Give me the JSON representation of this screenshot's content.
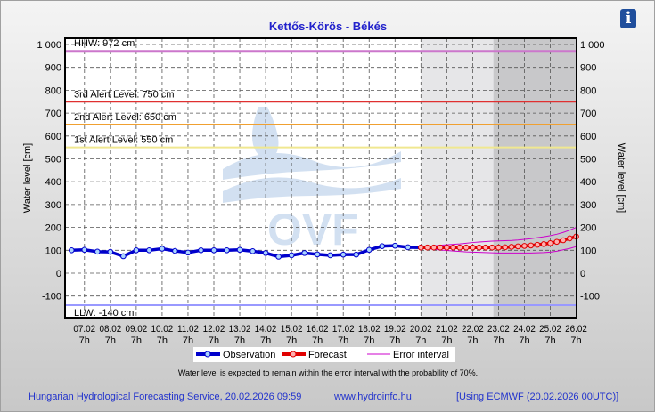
{
  "title": "Kettős-Körös - Békés",
  "info_icon": "info-icon",
  "chart_data": {
    "type": "line",
    "title": "Kettős-Körös - Békés",
    "ylabel": "Water level [cm]",
    "ylim": [
      -190,
      1090
    ],
    "yticks": [
      1000,
      900,
      800,
      700,
      600,
      500,
      400,
      300,
      200,
      100,
      0,
      -100
    ],
    "ytick_labels": [
      "1 000",
      "900",
      "800",
      "700",
      "600",
      "500",
      "400",
      "300",
      "200",
      "100",
      "0",
      "-100"
    ],
    "xtick_dates": [
      "07.02",
      "08.02",
      "09.02",
      "10.02",
      "11.02",
      "12.02",
      "13.02",
      "14.02",
      "15.02",
      "16.02",
      "17.02",
      "18.02",
      "19.02",
      "20.02",
      "21.02",
      "22.02",
      "23.02",
      "24.02",
      "25.02",
      "26.02"
    ],
    "xtick_hour": "7h",
    "reference_lines": [
      {
        "label": "HHW: 972 cm",
        "value": 972,
        "color": "#cc77cc"
      },
      {
        "label": "3rd Alert Level: 750 cm",
        "value": 750,
        "color": "#e03030"
      },
      {
        "label": "2nd Alert Level: 650 cm",
        "value": 650,
        "color": "#f0a030"
      },
      {
        "label": "1st Alert Level: 550 cm",
        "value": 550,
        "color": "#f0e890"
      },
      {
        "label": "LLW: -140 cm",
        "value": -140,
        "color": "#9999ff"
      }
    ],
    "series": [
      {
        "name": "Observation",
        "color": "#0000cc",
        "x_start_days": -0.5,
        "step_days": 0.5,
        "values": [
          100,
          102,
          94,
          93,
          74,
          100,
          100,
          107,
          97,
          90,
          100,
          100,
          100,
          102,
          96,
          88,
          72,
          78,
          88,
          82,
          78,
          81,
          81,
          102,
          118,
          120,
          113,
          112
        ]
      },
      {
        "name": "Forecast",
        "color": "#e00000",
        "x_start_days": 13,
        "step_days": 0.25,
        "values": [
          112,
          112,
          112,
          112,
          112,
          112,
          112,
          112,
          112,
          112,
          112,
          112,
          112,
          113,
          115,
          117,
          119,
          121,
          124,
          127,
          131,
          137,
          144,
          152,
          160
        ]
      },
      {
        "name": "Error interval",
        "color": "#cc00cc",
        "x_start_days": 13,
        "step_days": 0.25,
        "upper": [
          112,
          116,
          119,
          122,
          124,
          126,
          128,
          131,
          134,
          136,
          138,
          140,
          141,
          142,
          143,
          145,
          148,
          151,
          155,
          159,
          164,
          170,
          178,
          188,
          200
        ],
        "lower": [
          112,
          108,
          104,
          101,
          99,
          97,
          95,
          93,
          92,
          91,
          90,
          89,
          88,
          88,
          88,
          88,
          88,
          88,
          89,
          90,
          92,
          96,
          102,
          108,
          116
        ]
      }
    ],
    "legend": [
      "Observation",
      "Forecast",
      "Error interval"
    ],
    "legend_placement": "bottom-center",
    "note": "Water level is expected to remain within the error interval with the probability of 70%."
  },
  "footer": {
    "service": "Hungarian Hydrological Forecasting Service, 20.02.2026 09:59",
    "url": "www.hydroinfo.hu",
    "model": "[Using ECMWF (20.02.2026  00UTC)]"
  },
  "watermark": "OVF"
}
